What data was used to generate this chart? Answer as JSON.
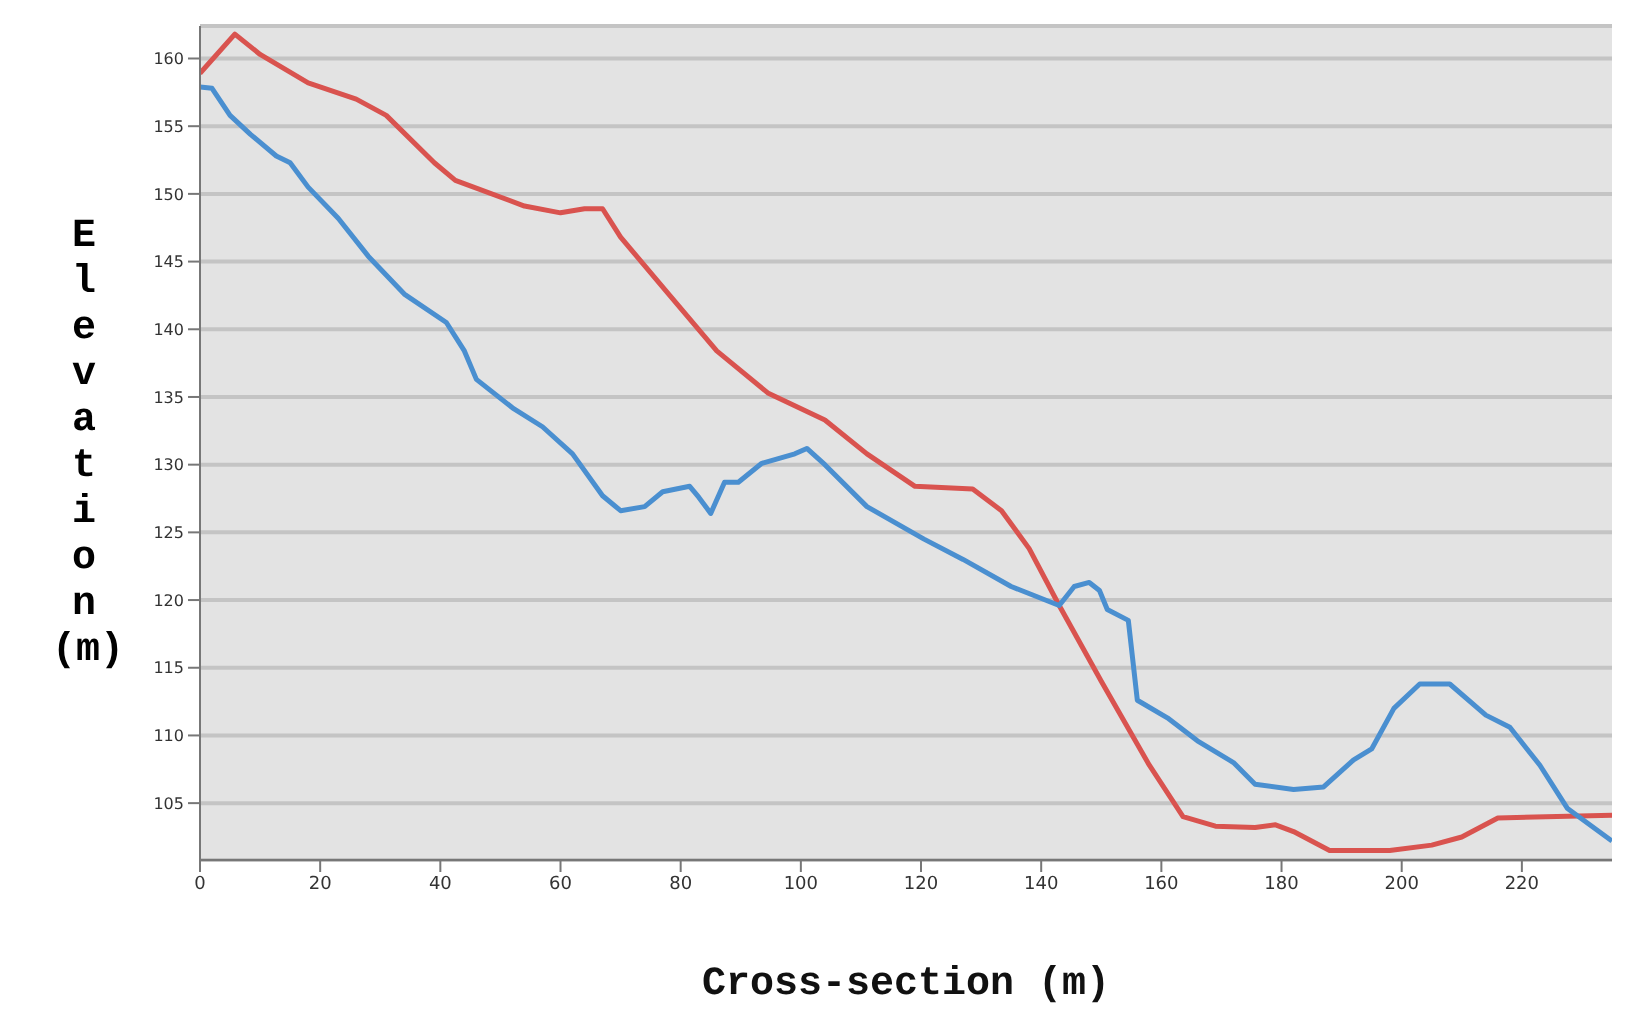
{
  "chart_data": {
    "type": "line",
    "xlabel": "Cross-section (m)",
    "ylabel": "Elevation (m)",
    "xlim": [
      0,
      235
    ],
    "ylim": [
      100.8,
      162.4
    ],
    "xticks": [
      0,
      20,
      40,
      60,
      80,
      100,
      120,
      140,
      160,
      180,
      200,
      220
    ],
    "yticks": [
      105,
      110,
      115,
      120,
      125,
      130,
      135,
      140,
      145,
      150,
      155,
      160
    ],
    "grid": "y",
    "marker": "none",
    "line_style": "solid",
    "series": [
      {
        "color": "#d9534f",
        "x": [
          0,
          5.8,
          10,
          18,
          26,
          31,
          39,
          42.5,
          54,
          60,
          64,
          67,
          70,
          78,
          86,
          94.5,
          104,
          111,
          119,
          128.6,
          133.4,
          138,
          143,
          150,
          158,
          163.6,
          169,
          175.6,
          179,
          182,
          188,
          198,
          205,
          210,
          216,
          224,
          235
        ],
        "values": [
          158.9,
          161.8,
          160.3,
          158.2,
          157,
          155.8,
          152.3,
          151,
          149.1,
          148.6,
          148.9,
          148.9,
          146.8,
          142.6,
          138.4,
          135.3,
          133.3,
          130.8,
          128.4,
          128.2,
          126.6,
          123.8,
          119.6,
          114,
          107.8,
          104,
          103.3,
          103.2,
          103.4,
          102.9,
          101.5,
          101.5,
          101.9,
          102.5,
          103.9,
          104,
          104.1
        ]
      },
      {
        "color": "#4a8fd0",
        "x": [
          0,
          2,
          5,
          8.4,
          12.7,
          15,
          18,
          23,
          28,
          34,
          41,
          44,
          46,
          52,
          57,
          62,
          67,
          70,
          74,
          77,
          81.5,
          83,
          85,
          87.3,
          89.6,
          93.5,
          99,
          101,
          104,
          111,
          120.5,
          127,
          135,
          143,
          145.5,
          148,
          149.7,
          151,
          154.5,
          156,
          161,
          166,
          172,
          175.6,
          182,
          187,
          192,
          195,
          198.7,
          203,
          208,
          214,
          218,
          223,
          227.6,
          235
        ],
        "values": [
          157.9,
          157.8,
          155.8,
          154.4,
          152.8,
          152.3,
          150.5,
          148.2,
          145.4,
          142.6,
          140.5,
          138.4,
          136.3,
          134.2,
          132.8,
          130.8,
          127.7,
          126.6,
          126.9,
          128,
          128.4,
          127.6,
          126.4,
          128.7,
          128.7,
          130.1,
          130.8,
          131.2,
          130,
          126.9,
          124.5,
          123,
          121,
          119.6,
          121,
          121.3,
          120.7,
          119.3,
          118.5,
          112.6,
          111.3,
          109.6,
          108,
          106.4,
          106,
          106.2,
          108.2,
          109,
          112,
          113.8,
          113.8,
          111.5,
          110.6,
          107.8,
          104.6,
          102.2
        ]
      }
    ]
  }
}
